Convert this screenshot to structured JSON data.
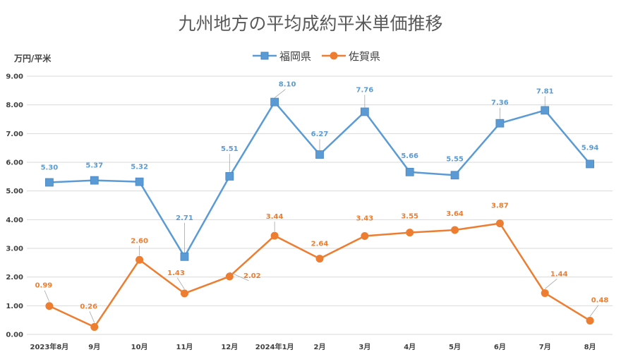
{
  "chart_data": {
    "type": "line",
    "title": "九州地方の平均成約平米単価推移",
    "ylabel": "万円/平米",
    "xlabel": "",
    "ylim": [
      0,
      9
    ],
    "yticks": [
      "0.00",
      "1.00",
      "2.00",
      "3.00",
      "4.00",
      "5.00",
      "6.00",
      "7.00",
      "8.00",
      "9.00"
    ],
    "grid": true,
    "legend_position": "top",
    "categories": [
      "2023年8月",
      "9月",
      "10月",
      "11月",
      "12月",
      "2024年1月",
      "2月",
      "3月",
      "4月",
      "5月",
      "6月",
      "7月",
      "8月"
    ],
    "series": [
      {
        "name": "福岡県",
        "color": "#5b9bd5",
        "marker": "square",
        "values": [
          5.3,
          5.37,
          5.32,
          2.71,
          5.51,
          8.1,
          6.27,
          7.76,
          5.66,
          5.55,
          7.36,
          7.81,
          5.94
        ],
        "labels": [
          "5.30",
          "5.37",
          "5.32",
          "2.71",
          "5.51",
          "8.10",
          "6.27",
          "7.76",
          "5.66",
          "5.55",
          "7.36",
          "7.81",
          "5.94"
        ]
      },
      {
        "name": "佐賀県",
        "color": "#ed7d31",
        "marker": "circle",
        "values": [
          0.99,
          0.26,
          2.6,
          1.43,
          2.02,
          3.44,
          2.64,
          3.43,
          3.55,
          3.64,
          3.87,
          1.44,
          0.48
        ],
        "labels": [
          "0.99",
          "0.26",
          "2.60",
          "1.43",
          "2.02",
          "3.44",
          "2.64",
          "3.43",
          "3.55",
          "3.64",
          "3.87",
          "1.44",
          "0.48"
        ]
      }
    ]
  }
}
